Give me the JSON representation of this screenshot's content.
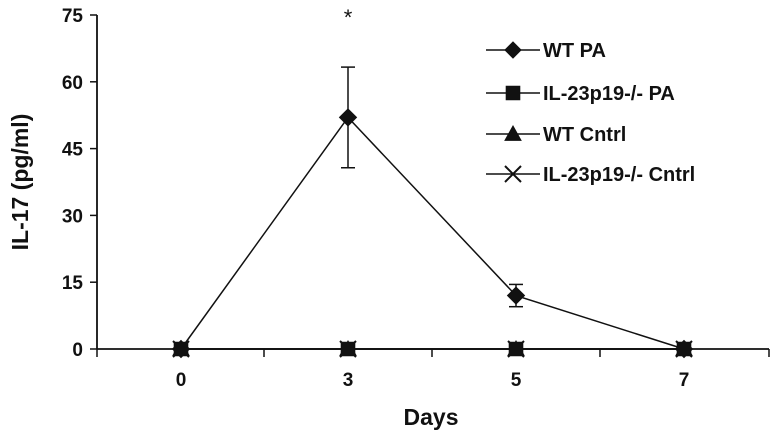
{
  "chart_data": {
    "type": "line",
    "title": "",
    "xlabel": "Days",
    "ylabel": "IL-17 (pg/ml)",
    "categories": [
      "0",
      "3",
      "5",
      "7"
    ],
    "ylim": [
      0,
      75
    ],
    "yticks": [
      "0",
      "15",
      "30",
      "45",
      "60",
      "75"
    ],
    "grid": false,
    "legend_position": "top-right",
    "series": [
      {
        "name": "WT PA",
        "marker": "diamond",
        "values": [
          0,
          52,
          12,
          0
        ],
        "error": [
          0,
          11.3,
          2.5,
          0
        ]
      },
      {
        "name": "IL-23p19-/- PA",
        "marker": "square",
        "values": [
          0,
          0,
          0,
          0
        ]
      },
      {
        "name": "WT Cntrl",
        "marker": "triangle",
        "values": [
          0,
          0,
          0,
          0
        ]
      },
      {
        "name": "IL-23p19-/- Cntrl",
        "marker": "x",
        "values": [
          0,
          0,
          0,
          0
        ]
      }
    ],
    "annotations": [
      {
        "text": "*",
        "category": "3",
        "value": 75
      }
    ]
  }
}
